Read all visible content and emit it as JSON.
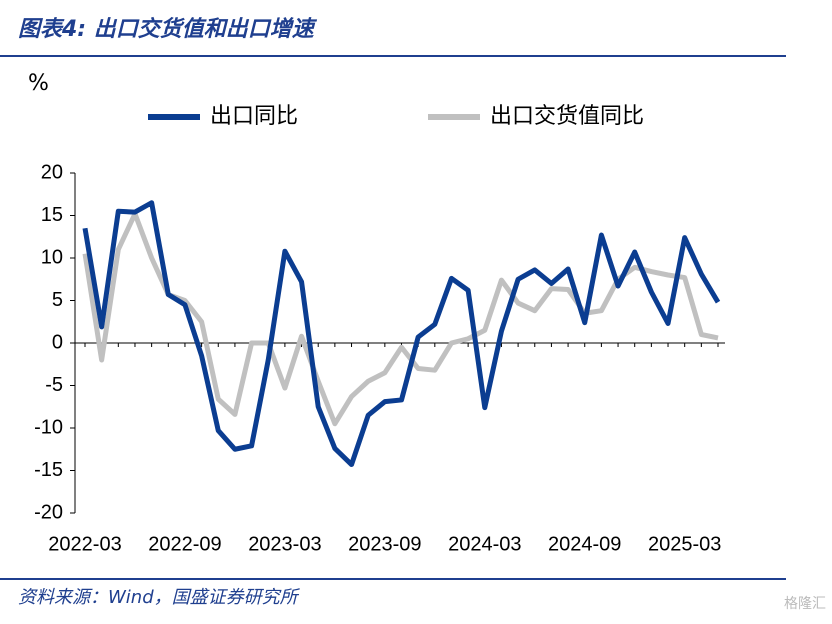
{
  "chart_data": {
    "type": "line",
    "title": "图表4: 出口交货值和出口增速",
    "y_label": "%",
    "source": "资料来源：Wind，国盛证券研究所",
    "categories": [
      "2022-03",
      null,
      null,
      null,
      null,
      null,
      "2022-09",
      null,
      null,
      null,
      null,
      null,
      "2023-03",
      null,
      null,
      null,
      null,
      null,
      "2023-09",
      null,
      null,
      null,
      null,
      null,
      "2024-03",
      null,
      null,
      null,
      null,
      null,
      "2024-09",
      null,
      null,
      null,
      null,
      null,
      "2025-03",
      null,
      null
    ],
    "series": [
      {
        "name": "出口同比",
        "color": "#0b3d91",
        "values": [
          13.5,
          1.9,
          15.5,
          15.4,
          16.5,
          5.7,
          4.5,
          -1.5,
          -10.3,
          -12.5,
          -12.1,
          -2,
          10.8,
          7.2,
          -7.5,
          -12.4,
          -14.3,
          -8.5,
          -6.9,
          -6.7,
          0.7,
          2.2,
          7.6,
          6.2,
          -7.6,
          1.4,
          7.5,
          8.6,
          7.0,
          8.7,
          2.4,
          12.7,
          6.7,
          10.7,
          6.0,
          2.3,
          12.4,
          8.1,
          4.8
        ]
      },
      {
        "name": "出口交货值同比",
        "color": "#c0c0c0",
        "values": [
          10.5,
          -2,
          11,
          15.2,
          10,
          5.7,
          5.0,
          2.5,
          -6.6,
          -8.4,
          0,
          0,
          -5.3,
          0.8,
          -4.5,
          -9.5,
          -6.3,
          -4.5,
          -3.5,
          -0.5,
          -3,
          -3.2,
          0,
          0.5,
          1.5,
          7.4,
          4.7,
          3.8,
          6.4,
          6.3,
          3.5,
          3.8,
          7.5,
          8.9,
          8.4,
          8.0,
          7.7,
          1.0,
          0.6
        ]
      }
    ],
    "ylim": [
      -20,
      20
    ],
    "yticks": [
      -20,
      -15,
      -10,
      -5,
      0,
      5,
      10,
      15,
      20
    ]
  },
  "watermark": "格隆汇"
}
